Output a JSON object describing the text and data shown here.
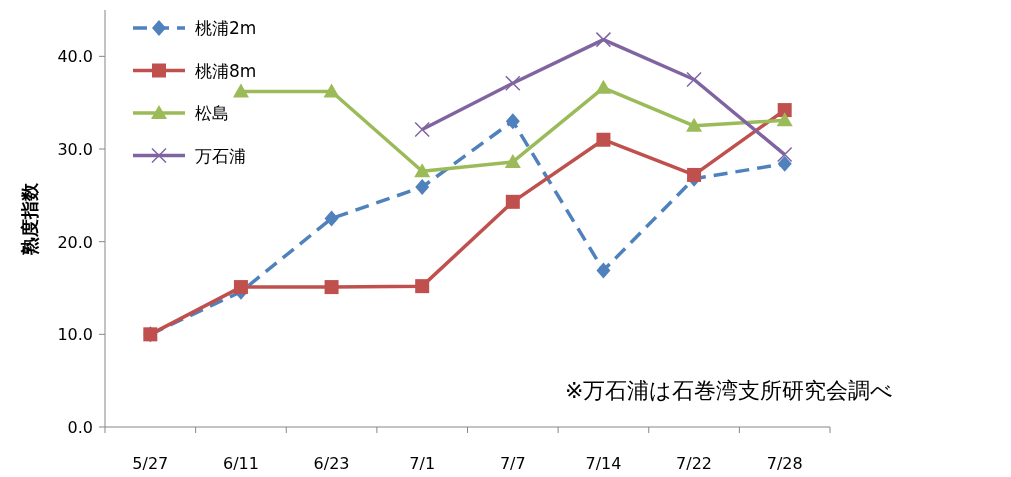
{
  "chart_data": {
    "type": "line",
    "ylabel": "熟度指数",
    "categories": [
      "5/27",
      "6/11",
      "6/23",
      "7/1",
      "7/7",
      "7/14",
      "7/22",
      "7/28"
    ],
    "series": [
      {
        "name": "桃浦2m",
        "color": "#4f81bd",
        "marker": "diamond",
        "line_style": "dashed",
        "values": [
          10.0,
          14.6,
          22.5,
          25.9,
          33.0,
          16.9,
          26.8,
          28.4
        ]
      },
      {
        "name": "桃浦8m",
        "color": "#c0504d",
        "marker": "square",
        "line_style": "solid",
        "values": [
          10.0,
          15.1,
          15.1,
          15.2,
          24.3,
          31.0,
          27.2,
          34.2
        ]
      },
      {
        "name": "松島",
        "color": "#9bbb59",
        "marker": "triangle",
        "line_style": "solid",
        "values": [
          null,
          36.2,
          36.2,
          27.6,
          28.6,
          36.6,
          32.5,
          33.1
        ]
      },
      {
        "name": "万石浦",
        "color": "#8064a2",
        "marker": "cross",
        "line_style": "solid",
        "values": [
          null,
          null,
          null,
          32.1,
          37.1,
          41.8,
          37.5,
          29.4
        ]
      }
    ],
    "ylim": [
      0,
      45
    ],
    "yticks": [
      {
        "value": 0,
        "label": "0.0"
      },
      {
        "value": 10,
        "label": "10.0"
      },
      {
        "value": 20,
        "label": "20.0"
      },
      {
        "value": 30,
        "label": "30.0"
      },
      {
        "value": 40,
        "label": "40.0"
      }
    ],
    "grid": false,
    "legend": "top left",
    "annotations": [
      "※万石浦は石巻湾支所研究会調べ"
    ]
  }
}
